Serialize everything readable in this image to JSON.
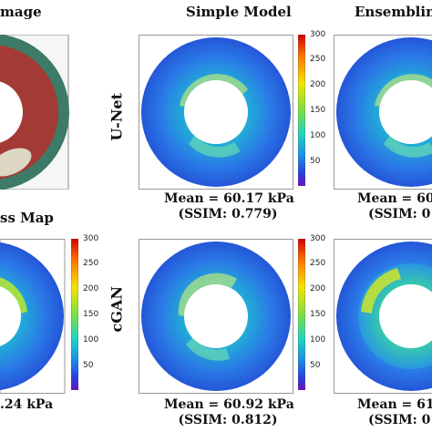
{
  "headings": {
    "image": "mage",
    "simple_model": "Simple Model",
    "ensembling": "Ensembling"
  },
  "row_labels": {
    "unet": "U-Net",
    "cgan": "cGAN"
  },
  "stress_map_label": "ss Map",
  "captions": {
    "unet_simple": {
      "mean": "Mean = 60.17 kPa",
      "ssim": "(SSIM: 0.779)"
    },
    "unet_ensemble": {
      "mean": "Mean = 60",
      "ssim": "(SSIM: 0"
    },
    "cgan_simple": {
      "mean": "Mean = 60.92 kPa",
      "ssim": "(SSIM: 0.812)"
    },
    "cgan_ensemble": {
      "mean": "Mean = 61",
      "ssim": "(SSIM: 0"
    },
    "gt_partial": ".24 kPa"
  },
  "colorbar": {
    "ticks": [
      "300",
      "250",
      "200",
      "150",
      "100",
      "50"
    ],
    "colors": [
      "#ff0000",
      "#ffaa00",
      "#ffff00",
      "#7fff00",
      "#00ffcc",
      "#00aaff",
      "#0044ff",
      "#5500cc"
    ]
  },
  "colors": {
    "ring_outer": "#3d7a67",
    "ring_inner": "#a33a35",
    "fibro": "#dcd6c2",
    "stress_base": "#2a6ee8"
  }
}
